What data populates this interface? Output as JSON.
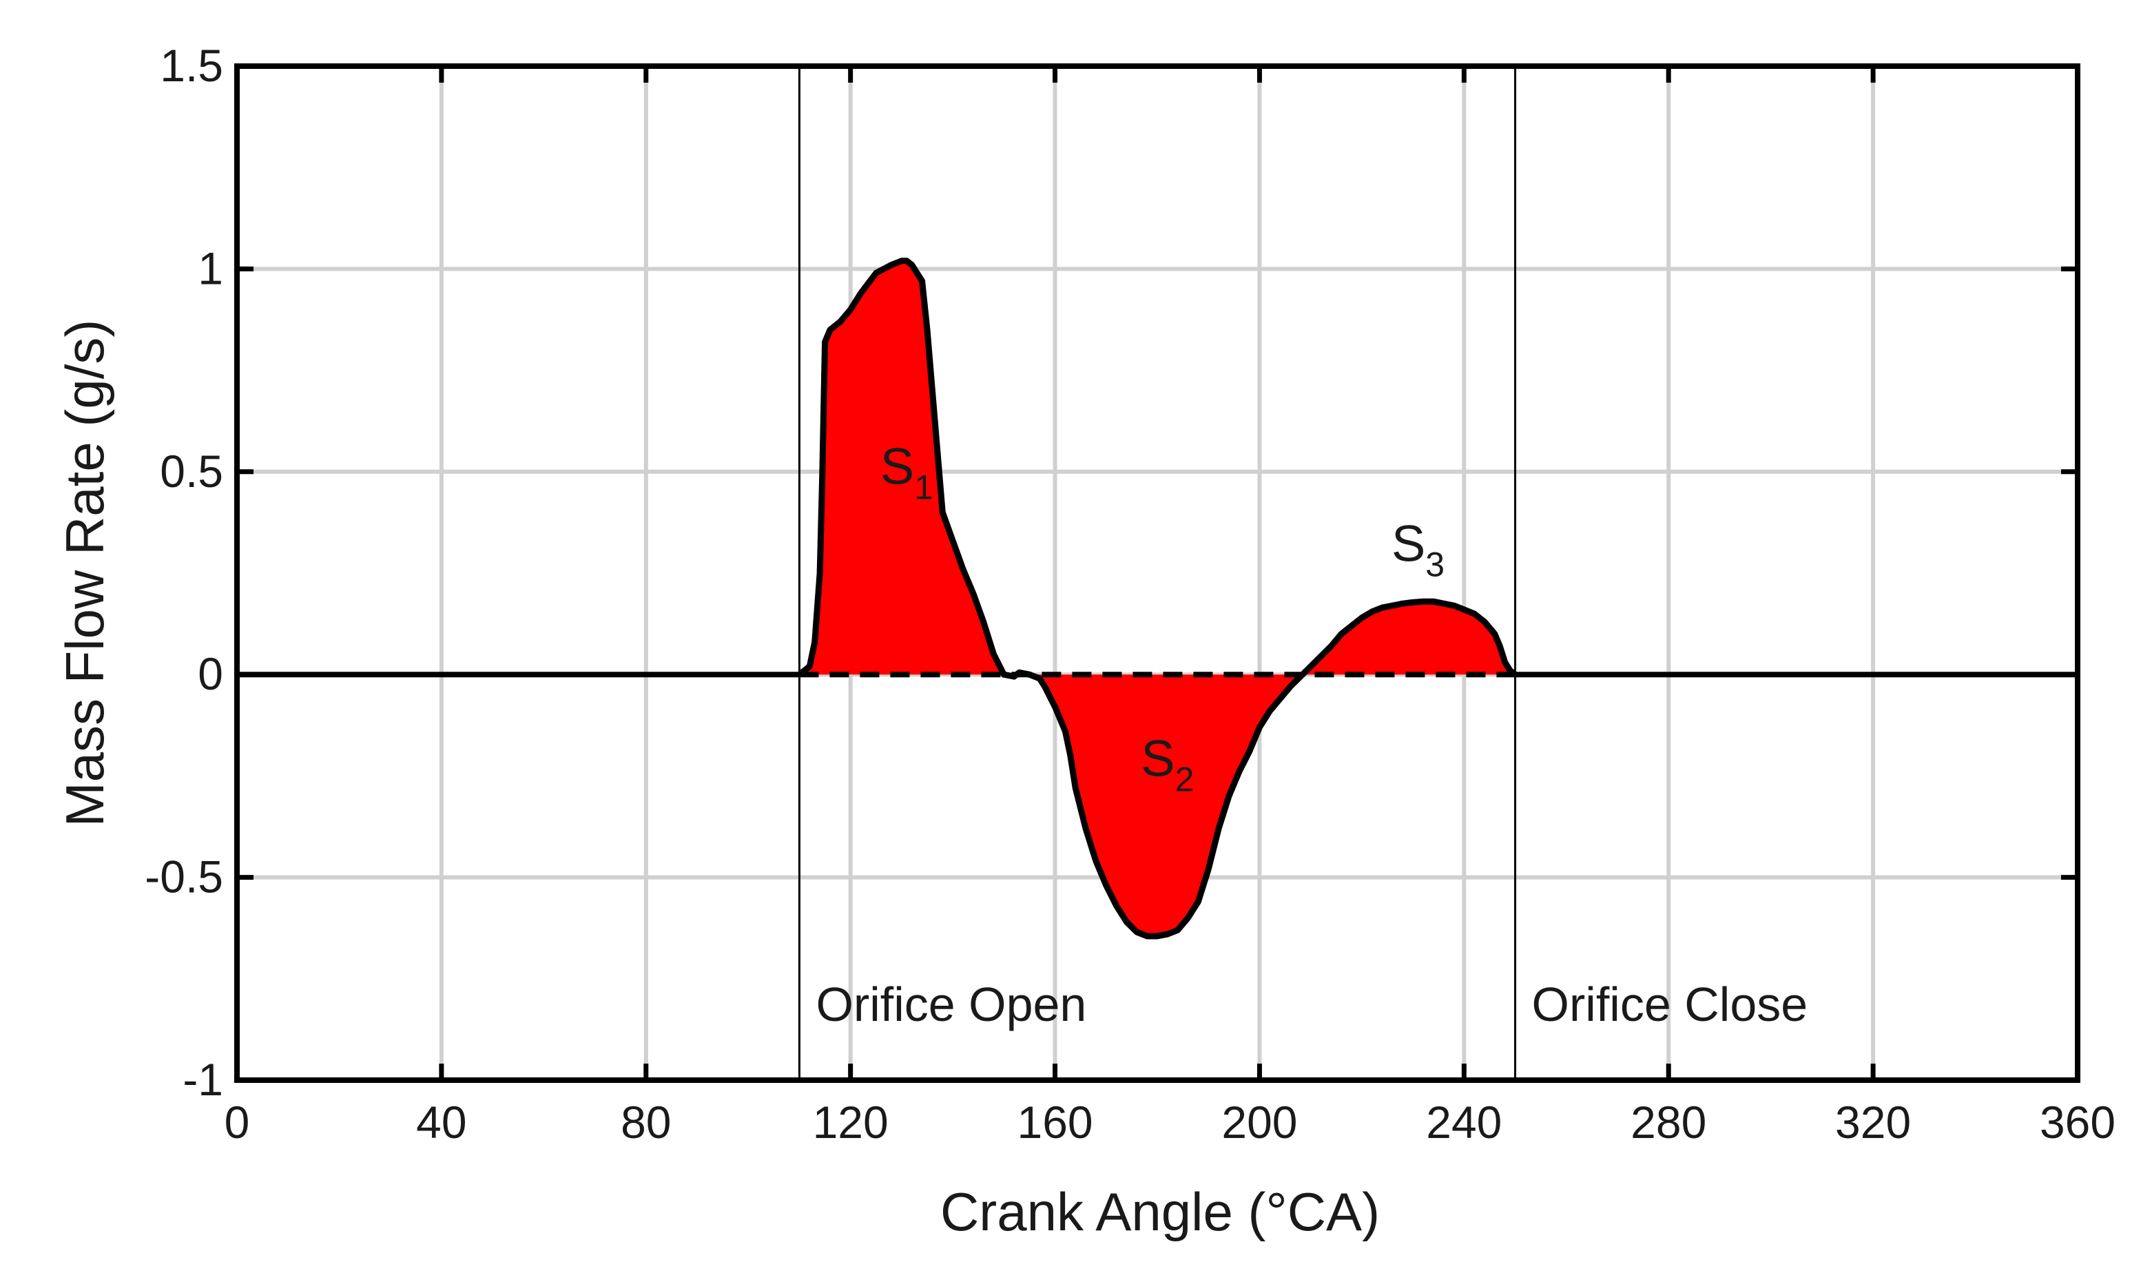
{
  "chart_data": {
    "type": "area",
    "xlabel": "Crank Angle (°CA)",
    "ylabel": "Mass Flow Rate (g/s)",
    "xlim": [
      0,
      360
    ],
    "ylim": [
      -1,
      1.5
    ],
    "xticks": [
      0,
      40,
      80,
      120,
      160,
      200,
      240,
      280,
      320,
      360
    ],
    "yticks": [
      -1,
      -0.5,
      0,
      0.5,
      1,
      1.5
    ],
    "xtick_labels": [
      "0",
      "40",
      "80",
      "120",
      "160",
      "200",
      "240",
      "280",
      "320",
      "360"
    ],
    "ytick_labels": [
      "-1",
      "-0.5",
      "0",
      "0.5",
      "1",
      "1.5"
    ],
    "grid": true,
    "fill_color": "#ff0000",
    "line_color": "#000000",
    "markers": [
      {
        "x": 110,
        "label": "Orifice Open"
      },
      {
        "x": 250,
        "label": "Orifice Close"
      }
    ],
    "regions": [
      {
        "label": "S",
        "subscript": "1",
        "x": 131,
        "y": 0.47
      },
      {
        "label": "S",
        "subscript": "2",
        "x": 182,
        "y": -0.25
      },
      {
        "label": "S",
        "subscript": "3",
        "x": 231,
        "y": 0.28
      }
    ],
    "series": [
      {
        "x": [
          0,
          110,
          112,
          113,
          114,
          114.5,
          115,
          116,
          118,
          120,
          122,
          125,
          128,
          130,
          131,
          132,
          134,
          135,
          136,
          137,
          138,
          140,
          142,
          144,
          146,
          148,
          150,
          152,
          153,
          155,
          157,
          158,
          160,
          162,
          163,
          164,
          166,
          168,
          170,
          172,
          174,
          176,
          178,
          180,
          182,
          184,
          186,
          188,
          190,
          192,
          194,
          196,
          198,
          200,
          202,
          204,
          206,
          208,
          210,
          212,
          214,
          216,
          218,
          220,
          222,
          224,
          226,
          228,
          230,
          232,
          234,
          236,
          238,
          240,
          242,
          244,
          246,
          247,
          248,
          249,
          250,
          360
        ],
        "y": [
          0,
          0,
          0.02,
          0.08,
          0.25,
          0.5,
          0.82,
          0.85,
          0.87,
          0.9,
          0.94,
          0.99,
          1.01,
          1.02,
          1.02,
          1.01,
          0.97,
          0.85,
          0.7,
          0.55,
          0.4,
          0.33,
          0.26,
          0.2,
          0.13,
          0.05,
          0.0,
          -0.005,
          0.005,
          0.0,
          -0.01,
          -0.03,
          -0.08,
          -0.14,
          -0.2,
          -0.28,
          -0.38,
          -0.46,
          -0.52,
          -0.57,
          -0.61,
          -0.635,
          -0.645,
          -0.645,
          -0.64,
          -0.63,
          -0.6,
          -0.56,
          -0.48,
          -0.38,
          -0.3,
          -0.24,
          -0.19,
          -0.13,
          -0.09,
          -0.06,
          -0.03,
          -0.005,
          0.02,
          0.045,
          0.07,
          0.1,
          0.12,
          0.14,
          0.155,
          0.165,
          0.17,
          0.175,
          0.178,
          0.18,
          0.18,
          0.175,
          0.17,
          0.16,
          0.15,
          0.13,
          0.1,
          0.07,
          0.03,
          0.01,
          0,
          0
        ]
      }
    ]
  }
}
